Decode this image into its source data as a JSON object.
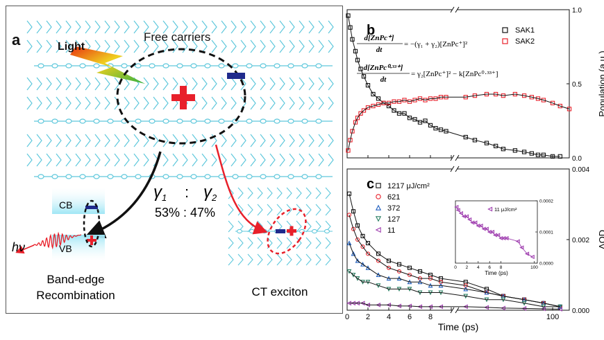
{
  "panel_a": {
    "label": "a",
    "light_label": "Light",
    "free_carriers_label": "Free carriers",
    "gamma1": "γ",
    "gamma1_sub": "1",
    "ratio_colon": ":",
    "gamma2": "γ",
    "gamma2_sub": "2",
    "percent_label": "53% : 47%",
    "cb_label": "CB",
    "vb_label": "VB",
    "hv_label": "hν",
    "band_edge_line1": "Band-edge",
    "band_edge_line2": "Recombination",
    "ct_exciton_label": "CT exciton"
  },
  "colors": {
    "chain": "#5fc8dc",
    "red": "#e8202a",
    "navy": "#1f2a8c",
    "band": "#9fe6f5",
    "orange": "#e06010"
  },
  "chart_data": [
    {
      "panel": "b",
      "type": "scatter",
      "label": "b",
      "x_axis": "broken: linear 0–10 ps, then log 10–~150 ps",
      "ylabel": "Population (a.u.)",
      "ylim": [
        0,
        1.0
      ],
      "yticks": [
        "0.0",
        "0.5",
        "1.0"
      ],
      "legend_position": "top-right",
      "equation_1_lhs_num": "d[ZnPc⁺]",
      "equation_1_lhs_den": "dt",
      "equation_1_rhs": "= −(γ₁ + γ₂)[ZnPc⁺]²",
      "equation_2_lhs_num": "d[ZnPc⁰·³³⁺]",
      "equation_2_lhs_den": "dt",
      "equation_2_rhs": "= γ₂[ZnPc⁺]² − k[ZnPc⁰·³³⁺]",
      "series": [
        {
          "name": "SAK1",
          "color": "#111111",
          "marker": "square",
          "x": [
            0.1,
            0.3,
            0.5,
            0.8,
            1.0,
            1.3,
            1.6,
            2.0,
            2.5,
            3.0,
            3.5,
            4.0,
            4.5,
            5.0,
            5.5,
            6.0,
            6.5,
            7.0,
            7.5,
            8.0,
            8.5,
            9.0,
            9.5,
            12,
            15,
            20,
            25,
            30,
            40,
            50,
            60,
            70,
            80,
            100,
            120
          ],
          "y": [
            0.96,
            0.88,
            0.8,
            0.72,
            0.66,
            0.6,
            0.55,
            0.49,
            0.43,
            0.4,
            0.37,
            0.35,
            0.32,
            0.3,
            0.3,
            0.27,
            0.26,
            0.24,
            0.25,
            0.22,
            0.2,
            0.19,
            0.18,
            0.14,
            0.12,
            0.1,
            0.08,
            0.06,
            0.05,
            0.04,
            0.03,
            0.02,
            0.02,
            0.01,
            0.01
          ]
        },
        {
          "name": "SAK2",
          "color": "#e8202a",
          "marker": "square",
          "x": [
            0.1,
            0.3,
            0.5,
            0.8,
            1.0,
            1.3,
            1.6,
            2.0,
            2.5,
            3.0,
            3.5,
            4.0,
            4.5,
            5.0,
            5.5,
            6.0,
            6.5,
            7.0,
            7.5,
            8.0,
            8.5,
            9.0,
            9.5,
            12,
            15,
            20,
            25,
            30,
            40,
            50,
            60,
            70,
            80,
            100,
            120,
            150
          ],
          "y": [
            0.05,
            0.12,
            0.18,
            0.24,
            0.27,
            0.3,
            0.32,
            0.34,
            0.35,
            0.36,
            0.37,
            0.37,
            0.38,
            0.38,
            0.39,
            0.38,
            0.39,
            0.4,
            0.39,
            0.4,
            0.4,
            0.41,
            0.41,
            0.41,
            0.42,
            0.43,
            0.43,
            0.42,
            0.43,
            0.42,
            0.41,
            0.4,
            0.39,
            0.37,
            0.35,
            0.33
          ]
        }
      ]
    },
    {
      "panel": "c",
      "type": "scatter",
      "label": "c",
      "xlabel": "Time (ps)",
      "xticks": [
        "0",
        "2",
        "4",
        "6",
        "8",
        "100"
      ],
      "x_axis": "broken: linear 0–10 ps, then log 10–~150 ps",
      "ylabel": "ΔOD",
      "ylim": [
        0,
        0.004
      ],
      "yticks": [
        "0.000",
        "0.002",
        "0.004"
      ],
      "legend_position": "top-left",
      "series": [
        {
          "name": "1217 μJ/cm²",
          "color": "#111111",
          "marker": "square",
          "x": [
            0.2,
            0.6,
            1.0,
            1.5,
            2.0,
            3.0,
            4.0,
            5.0,
            6.0,
            7.0,
            8.0,
            9.0,
            12,
            20,
            30,
            50,
            80,
            120
          ],
          "y": [
            0.0033,
            0.0028,
            0.0024,
            0.0021,
            0.0019,
            0.0016,
            0.0014,
            0.0013,
            0.0012,
            0.0011,
            0.001,
            0.0009,
            0.0008,
            0.0006,
            0.0004,
            0.0003,
            0.0002,
            0.0001
          ]
        },
        {
          "name": "621",
          "color": "#e8202a",
          "marker": "circle",
          "x": [
            0.2,
            0.6,
            1.0,
            1.5,
            2.0,
            3.0,
            4.0,
            5.0,
            6.0,
            7.0,
            8.0,
            9.0,
            12,
            20,
            30,
            50,
            80,
            120
          ],
          "y": [
            0.0027,
            0.0023,
            0.002,
            0.0018,
            0.0016,
            0.0014,
            0.0012,
            0.0011,
            0.001,
            0.0009,
            0.0009,
            0.0008,
            0.0007,
            0.0005,
            0.0004,
            0.0003,
            0.0002,
            0.0001
          ]
        },
        {
          "name": "372",
          "color": "#1f5fbf",
          "marker": "triangle-up",
          "x": [
            0.2,
            0.6,
            1.0,
            1.5,
            2.0,
            3.0,
            4.0,
            5.0,
            6.0,
            7.0,
            8.0,
            9.0,
            12,
            20,
            30,
            50,
            80,
            120
          ],
          "y": [
            0.0019,
            0.0016,
            0.0014,
            0.0013,
            0.0012,
            0.001,
            0.0009,
            0.0009,
            0.0008,
            0.0008,
            0.0007,
            0.0007,
            0.0006,
            0.0005,
            0.0004,
            0.0003,
            0.0002,
            0.0001
          ]
        },
        {
          "name": "127",
          "color": "#2a7f62",
          "marker": "triangle-down",
          "x": [
            0.2,
            0.6,
            1.0,
            1.5,
            2.0,
            3.0,
            4.0,
            5.0,
            6.0,
            7.0,
            8.0,
            9.0,
            12,
            20,
            30,
            50,
            80,
            120
          ],
          "y": [
            0.0011,
            0.001,
            0.0009,
            0.0008,
            0.0008,
            0.0007,
            0.0006,
            0.0006,
            0.0006,
            0.0005,
            0.0005,
            0.0005,
            0.0004,
            0.0003,
            0.0003,
            0.0002,
            0.0001,
            0.0001
          ]
        },
        {
          "name": "11",
          "color": "#a040b0",
          "marker": "triangle-left",
          "x": [
            0.2,
            0.6,
            1.0,
            1.5,
            2.0,
            3.0,
            4.0,
            5.0,
            6.0,
            7.0,
            8.0,
            9.0,
            12,
            20,
            30,
            50,
            80,
            120
          ],
          "y": [
            0.0002,
            0.0002,
            0.0002,
            0.0002,
            0.00015,
            0.00015,
            0.00015,
            0.00012,
            0.00012,
            0.0001,
            0.0001,
            0.0001,
            0.0001,
            8e-05,
            6e-05,
            5e-05,
            4e-05,
            3e-05
          ]
        }
      ]
    },
    {
      "panel": "c-inset",
      "type": "scatter",
      "xlabel": "Time (ps)",
      "xticks": [
        "0",
        "2",
        "4",
        "6",
        "8",
        "100"
      ],
      "ylim": [
        0,
        0.0002
      ],
      "yticks": [
        "0.0000",
        "0.0001",
        "0.0002"
      ],
      "series": [
        {
          "name": "11 μJ/cm²",
          "color": "#a040b0",
          "marker": "triangle-left",
          "x": [
            0.2,
            0.5,
            1.0,
            1.5,
            2.0,
            2.5,
            3.0,
            3.5,
            4.0,
            4.5,
            5.0,
            5.5,
            6.0,
            6.5,
            7.0,
            7.5,
            8.0,
            8.5,
            9.0,
            12,
            20,
            40,
            80
          ],
          "y": [
            0.00018,
            0.00017,
            0.00016,
            0.00015,
            0.00015,
            0.00014,
            0.00013,
            0.00013,
            0.00012,
            0.00012,
            0.00011,
            0.00011,
            0.0001,
            0.0001,
            9e-05,
            9e-05,
            8e-05,
            8e-05,
            8e-05,
            7e-05,
            5e-05,
            3e-05,
            2e-05
          ]
        }
      ]
    }
  ]
}
